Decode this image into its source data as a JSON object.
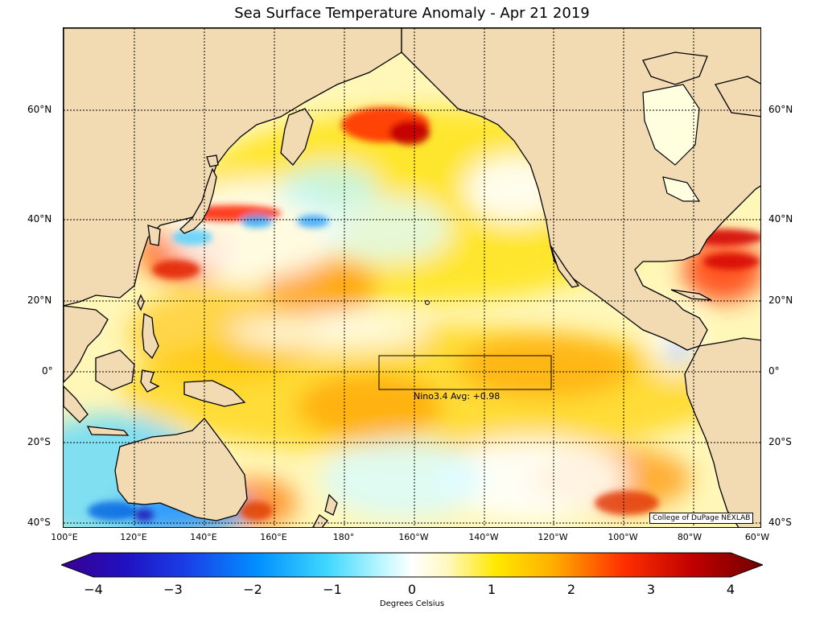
{
  "title": "Sea Surface Temperature Anomaly - Apr 21 2019",
  "latitude_labels": [
    "60°N",
    "40°N",
    "20°N",
    "0°",
    "20°S",
    "40°S"
  ],
  "longitude_labels": [
    "100°E",
    "120°E",
    "140°E",
    "160°E",
    "180°",
    "160°W",
    "140°W",
    "120°W",
    "100°W",
    "80°W",
    "60°W"
  ],
  "nino_box": {
    "label": "Nino3.4 Avg: +0.98",
    "value": 0.98,
    "lon_range": [
      "170°W",
      "120°W"
    ],
    "lat_range": [
      "5°N",
      "5°S"
    ]
  },
  "credit": "College of DuPage NEXLAB",
  "colorbar": {
    "ticks": [
      "−4",
      "−3",
      "−2",
      "−1",
      "0",
      "1",
      "2",
      "3",
      "4"
    ],
    "min": -4,
    "max": 4,
    "label": "Degrees Celsius",
    "colors": [
      "#3a0090",
      "#1a1ad8",
      "#0068ff",
      "#00b8ff",
      "#8ef3ff",
      "#ffffff",
      "#fff6a0",
      "#ffe000",
      "#ffa000",
      "#ff3000",
      "#c00000",
      "#7a0000"
    ]
  },
  "colors": {
    "land": "#f2dab2",
    "ocean_neutral": "#ffffff",
    "grid": "#000000"
  }
}
